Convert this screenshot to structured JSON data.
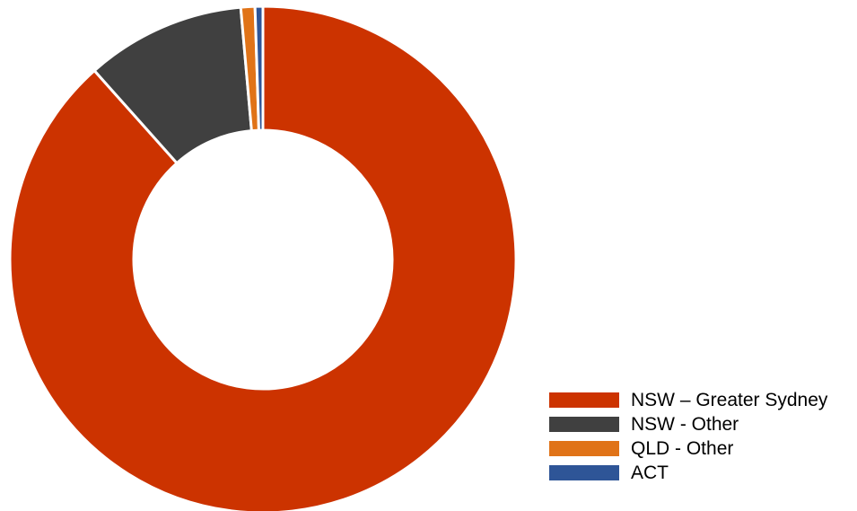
{
  "chart_data": {
    "type": "pie",
    "variant": "donut",
    "title": "",
    "categories": [
      "NSW – Greater Sydney",
      "NSW - Other",
      "QLD - Other",
      "ACT"
    ],
    "values": [
      88.4,
      10.2,
      0.9,
      0.5
    ],
    "colors": [
      "#cc3300",
      "#404040",
      "#e07318",
      "#2e5597"
    ],
    "legend_position": "bottom-right",
    "start_angle": "top",
    "direction": "clockwise"
  }
}
